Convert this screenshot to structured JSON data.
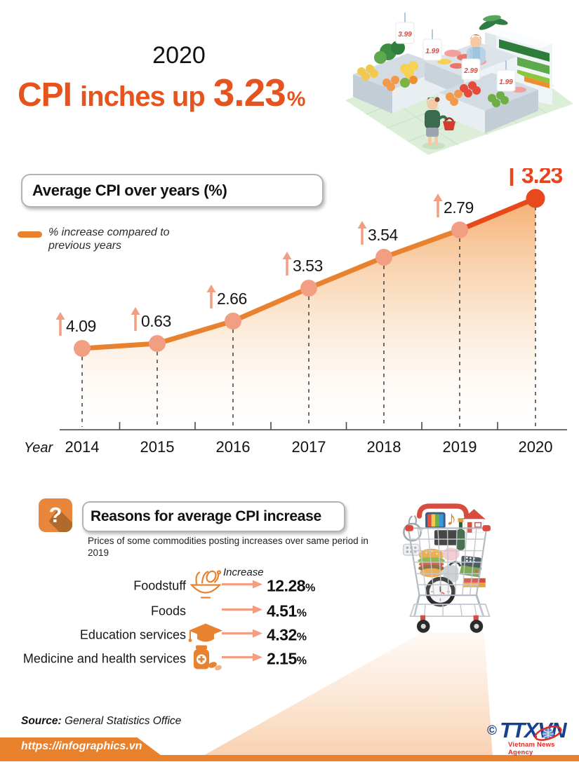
{
  "header": {
    "year_label": "2020",
    "title": {
      "cpi": "CPI",
      "middle": "inches up",
      "value": "3.23",
      "percent": "%"
    },
    "illustration": {
      "price_tags": [
        "3.99",
        "1.99",
        "2.99",
        "1.99"
      ]
    }
  },
  "chart": {
    "title": "Average CPI over years (%)",
    "legend": "% increase compared to previous years",
    "axis_label": "Year"
  },
  "chart_data": {
    "type": "line",
    "title": "Average CPI over years (%)",
    "x": [
      2014,
      2015,
      2016,
      2017,
      2018,
      2019,
      2020
    ],
    "values": [
      4.09,
      0.63,
      2.66,
      3.53,
      3.54,
      2.79,
      3.23
    ],
    "series": [
      {
        "name": "% increase compared to previous years",
        "values": [
          4.09,
          0.63,
          2.66,
          3.53,
          3.54,
          2.79,
          3.23
        ]
      }
    ],
    "xlabel": "Year",
    "ylabel": "",
    "legend_entries": [
      "% increase compared to previous years"
    ],
    "legend_position": "top-left",
    "grid": false,
    "highlight_x": 2020,
    "note": "stylized rising curve; point heights not proportional to values"
  },
  "reasons": {
    "title": "Reasons for average CPI increase",
    "subtitle": "Prices of some commodities posting increases  over same period in 2019",
    "increase_label": "Increase",
    "items": [
      {
        "label": "Foodstuff",
        "icon": "food-bowl-icon",
        "value": "12.28",
        "unit": "%"
      },
      {
        "label": "Foods",
        "icon": null,
        "value": "4.51",
        "unit": "%"
      },
      {
        "label": "Education services",
        "icon": "graduation-cap-icon",
        "value": "4.32",
        "unit": "%"
      },
      {
        "label": "Medicine and health services",
        "icon": "medicine-bottle-icon",
        "value": "2.15",
        "unit": "%"
      }
    ]
  },
  "footer": {
    "source_label": "Source:",
    "source_text": "General Statistics Office",
    "url": "https://infographics.vn",
    "copyright": "©",
    "agency_abbr": "TTXVN",
    "agency_name": "Vietnam News Agency"
  },
  "colors": {
    "orange": "#E8822F",
    "red_orange": "#E8491C",
    "salmon": "#F29E83",
    "title_orange": "#E5541F",
    "banner_orange": "#E8802C",
    "logo_blue": "#16418F",
    "logo_red": "#E02A26"
  }
}
